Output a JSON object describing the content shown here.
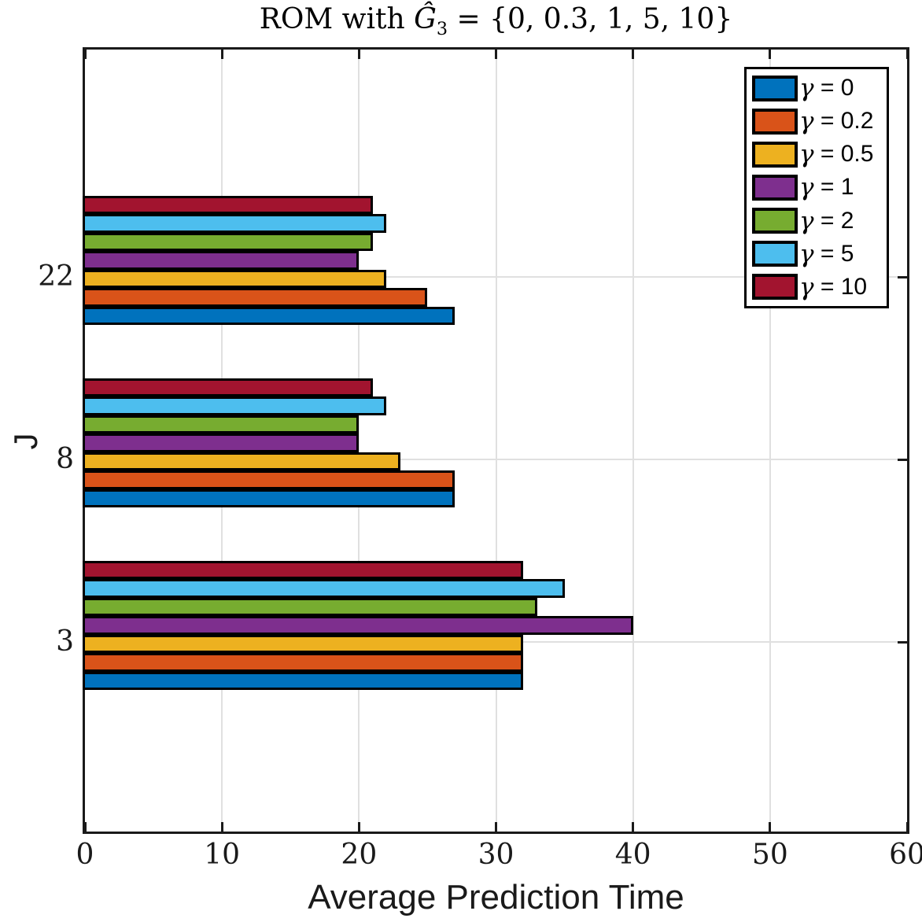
{
  "title": {
    "prefix": "ROM with ",
    "ghat": "Ĝ",
    "subscript": "3",
    "suffix": " = {0, 0.3, 1, 5, 10}",
    "full": "ROM with Ĝ3 = {0, 0.3, 1, 5, 10}"
  },
  "axes": {
    "xlabel": "Average Prediction Time",
    "ylabel": "J",
    "xtick_labels": [
      "0",
      "10",
      "20",
      "30",
      "40",
      "50",
      "60"
    ],
    "ytick_labels_top_to_bottom": [
      "22",
      "8",
      "3"
    ]
  },
  "legend": {
    "entries": [
      "γ = 0",
      "γ = 0.2",
      "γ = 0.5",
      "γ = 1",
      "γ = 2",
      "γ = 5",
      "γ = 10"
    ]
  },
  "chart_data": {
    "type": "bar",
    "orientation": "horizontal",
    "title": "ROM with Ĝ3 = {0, 0.3, 1, 5, 10}",
    "xlabel": "Average Prediction Time",
    "ylabel": "J",
    "xlim": [
      0,
      60
    ],
    "xticks": [
      0,
      10,
      20,
      30,
      40,
      50,
      60
    ],
    "grid": true,
    "legend_position": "northeast",
    "categories": [
      "3",
      "8",
      "22"
    ],
    "series": [
      {
        "name": "γ = 0",
        "color": "#0072BD",
        "values": [
          32,
          27,
          27
        ]
      },
      {
        "name": "γ = 0.2",
        "color": "#D95319",
        "values": [
          32,
          27,
          25
        ]
      },
      {
        "name": "γ = 0.5",
        "color": "#EDB120",
        "values": [
          32,
          23,
          22
        ]
      },
      {
        "name": "γ = 1",
        "color": "#7E2F8E",
        "values": [
          40,
          20,
          20
        ]
      },
      {
        "name": "γ = 2",
        "color": "#77AC30",
        "values": [
          33,
          20,
          21
        ]
      },
      {
        "name": "γ = 5",
        "color": "#4DBEEE",
        "values": [
          35,
          22,
          22
        ]
      },
      {
        "name": "γ = 10",
        "color": "#A2142F",
        "values": [
          32,
          21,
          21
        ]
      }
    ]
  },
  "colors": {
    "axis": "#1a1a1a",
    "grid": "#e0e0e0",
    "bar_border": "#000000",
    "background": "#ffffff",
    "legend_border": "#000000"
  }
}
